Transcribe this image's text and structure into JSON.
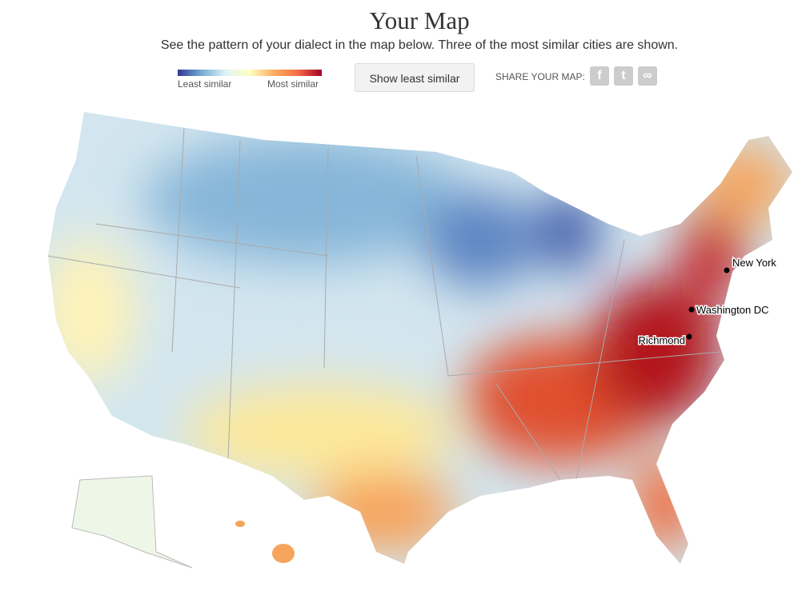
{
  "header": {
    "title": "Your Map",
    "subtitle": "See the pattern of your dialect in the map below. Three of the most similar cities are shown."
  },
  "legend": {
    "min_label": "Least similar",
    "max_label": "Most similar"
  },
  "controls": {
    "button": "Show least similar",
    "share_label": "SHARE YOUR MAP:"
  },
  "map": {
    "cities": [
      {
        "label": "New York"
      },
      {
        "label": "Washington DC"
      },
      {
        "label": "Richmond"
      }
    ]
  }
}
